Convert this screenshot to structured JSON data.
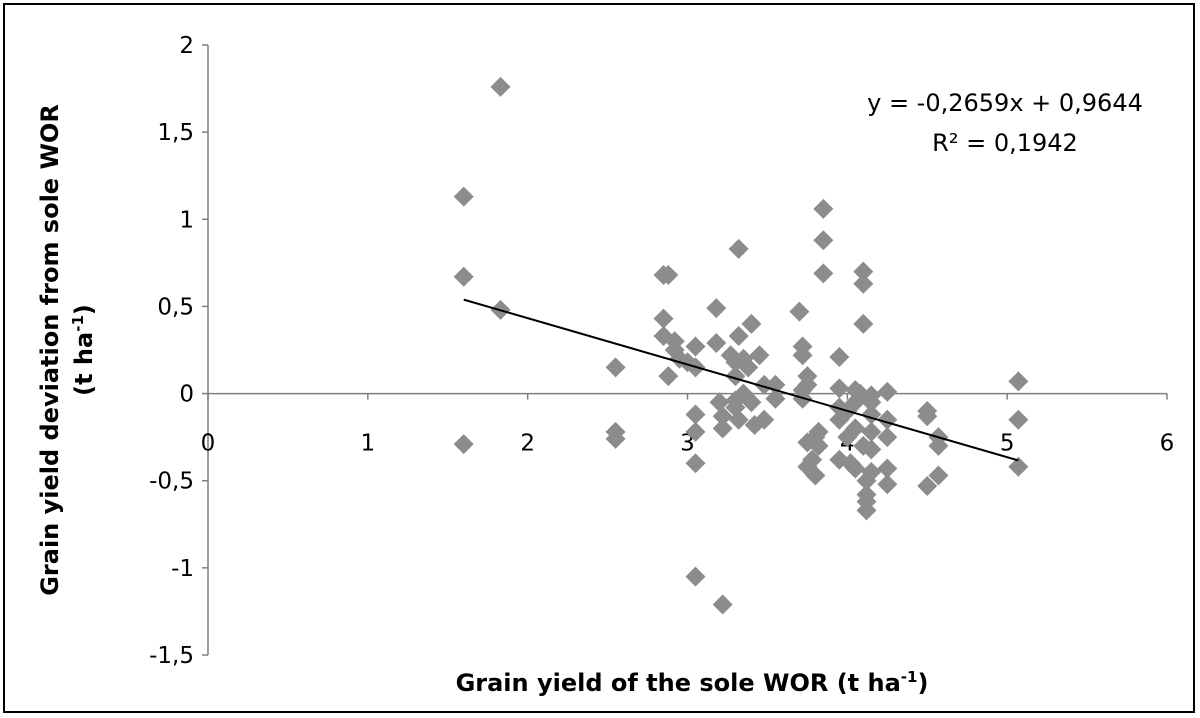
{
  "chart_data": {
    "type": "scatter",
    "title": "",
    "xlabel": "Grain yield of the sole WOR (t ha",
    "xlabel_sup": "-1",
    "xlabel_end": ")",
    "ylabel_line1": "Grain yield deviation from sole WOR",
    "ylabel_line2_pre": "(t ha",
    "ylabel_line2_sup": "-1",
    "ylabel_line2_end": ")",
    "xlim": [
      0,
      6
    ],
    "ylim": [
      -1.5,
      2
    ],
    "x_ticks": [
      "0",
      "1",
      "2",
      "3",
      "4",
      "5",
      "6"
    ],
    "y_ticks": [
      "2",
      "1,5",
      "1",
      "0,5",
      "0",
      "-0,5",
      "-1",
      "-1,5"
    ],
    "grid": false,
    "marker": "diamond",
    "marker_color": "#8c8c8c",
    "trendline": {
      "equation": "y = -0,2659x + 0,9644",
      "r_squared": "R² = 0,1942",
      "slope": -0.2659,
      "intercept": 0.9644,
      "x_range": [
        1.6,
        5.07
      ]
    },
    "points": [
      [
        1.6,
        1.13
      ],
      [
        1.6,
        0.67
      ],
      [
        1.6,
        -0.29
      ],
      [
        1.83,
        1.76
      ],
      [
        1.83,
        0.48
      ],
      [
        2.55,
        0.15
      ],
      [
        2.55,
        -0.22
      ],
      [
        2.55,
        -0.26
      ],
      [
        2.85,
        0.68
      ],
      [
        2.88,
        0.68
      ],
      [
        2.85,
        0.43
      ],
      [
        2.85,
        0.33
      ],
      [
        2.88,
        0.1
      ],
      [
        2.92,
        0.3
      ],
      [
        2.92,
        0.25
      ],
      [
        2.95,
        0.2
      ],
      [
        3.0,
        0.18
      ],
      [
        3.05,
        0.27
      ],
      [
        3.05,
        0.15
      ],
      [
        3.05,
        -0.12
      ],
      [
        3.05,
        -0.22
      ],
      [
        3.05,
        -0.4
      ],
      [
        3.05,
        -1.05
      ],
      [
        3.18,
        0.49
      ],
      [
        3.18,
        0.29
      ],
      [
        3.2,
        -0.05
      ],
      [
        3.22,
        -0.13
      ],
      [
        3.22,
        -0.2
      ],
      [
        3.22,
        -1.21
      ],
      [
        3.27,
        0.22
      ],
      [
        3.3,
        0.18
      ],
      [
        3.3,
        0.1
      ],
      [
        3.3,
        -0.04
      ],
      [
        3.3,
        -0.08
      ],
      [
        3.32,
        -0.15
      ],
      [
        3.32,
        0.83
      ],
      [
        3.32,
        0.33
      ],
      [
        3.35,
        0.2
      ],
      [
        3.35,
        0.0
      ],
      [
        3.38,
        0.15
      ],
      [
        3.4,
        0.4
      ],
      [
        3.4,
        -0.05
      ],
      [
        3.42,
        -0.18
      ],
      [
        3.45,
        0.22
      ],
      [
        3.48,
        0.05
      ],
      [
        3.48,
        -0.15
      ],
      [
        3.55,
        0.05
      ],
      [
        3.55,
        -0.03
      ],
      [
        3.7,
        0.47
      ],
      [
        3.72,
        0.27
      ],
      [
        3.72,
        0.22
      ],
      [
        3.72,
        0.02
      ],
      [
        3.72,
        -0.03
      ],
      [
        3.75,
        0.1
      ],
      [
        3.75,
        0.05
      ],
      [
        3.75,
        -0.28
      ],
      [
        3.75,
        -0.42
      ],
      [
        3.78,
        -0.38
      ],
      [
        3.8,
        -0.25
      ],
      [
        3.8,
        -0.47
      ],
      [
        3.82,
        -0.22
      ],
      [
        3.82,
        -0.3
      ],
      [
        3.85,
        1.06
      ],
      [
        3.85,
        0.88
      ],
      [
        3.85,
        0.69
      ],
      [
        3.95,
        0.21
      ],
      [
        3.95,
        0.03
      ],
      [
        3.95,
        -0.08
      ],
      [
        3.95,
        -0.15
      ],
      [
        3.95,
        -0.38
      ],
      [
        4.0,
        -0.1
      ],
      [
        4.0,
        -0.25
      ],
      [
        4.02,
        -0.4
      ],
      [
        4.05,
        0.02
      ],
      [
        4.05,
        -0.05
      ],
      [
        4.05,
        -0.2
      ],
      [
        4.05,
        -0.43
      ],
      [
        4.08,
        0.0
      ],
      [
        4.1,
        0.7
      ],
      [
        4.1,
        0.63
      ],
      [
        4.1,
        0.4
      ],
      [
        4.1,
        -0.3
      ],
      [
        4.12,
        -0.5
      ],
      [
        4.12,
        -0.58
      ],
      [
        4.12,
        -0.62
      ],
      [
        4.12,
        -0.67
      ],
      [
        4.15,
        -0.05
      ],
      [
        4.15,
        -0.12
      ],
      [
        4.15,
        -0.22
      ],
      [
        4.15,
        -0.32
      ],
      [
        4.15,
        -0.45
      ],
      [
        4.15,
        -0.01
      ],
      [
        4.25,
        0.01
      ],
      [
        4.25,
        -0.15
      ],
      [
        4.25,
        -0.25
      ],
      [
        4.25,
        -0.43
      ],
      [
        4.25,
        -0.52
      ],
      [
        4.5,
        -0.1
      ],
      [
        4.5,
        -0.13
      ],
      [
        4.5,
        -0.53
      ],
      [
        4.57,
        -0.25
      ],
      [
        4.57,
        -0.3
      ],
      [
        4.57,
        -0.47
      ],
      [
        5.07,
        0.07
      ],
      [
        5.07,
        -0.15
      ],
      [
        5.07,
        -0.42
      ]
    ]
  }
}
